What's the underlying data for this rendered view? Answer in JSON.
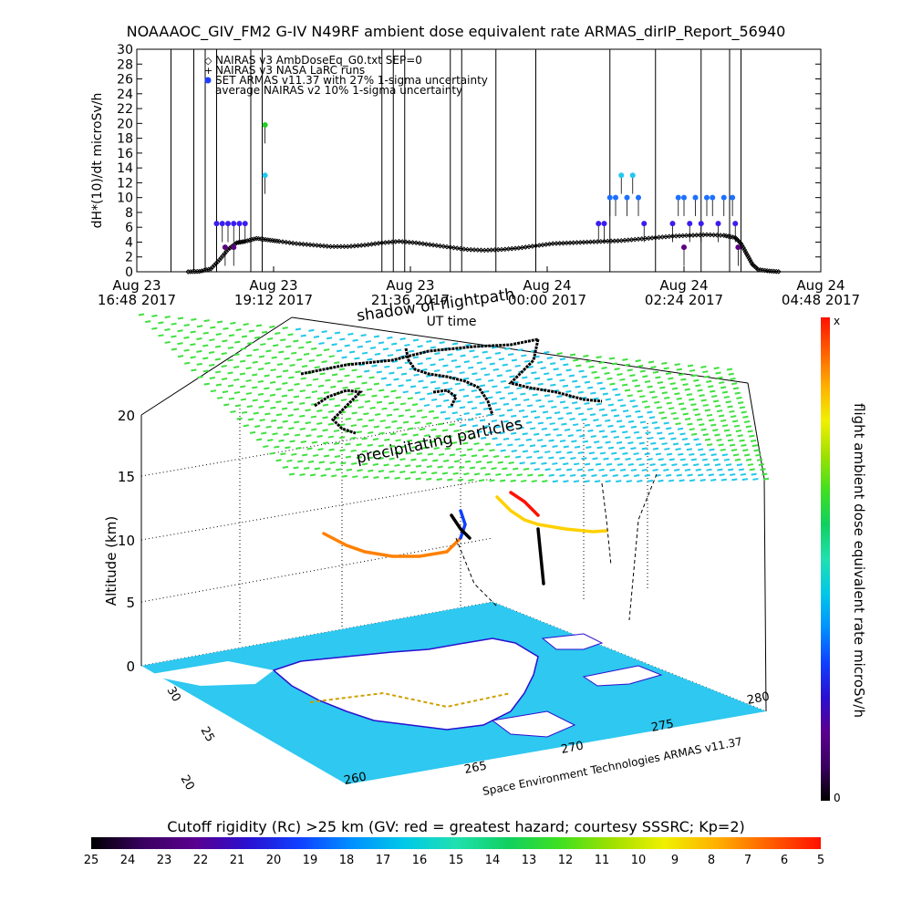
{
  "chart_data": [
    {
      "type": "scatter",
      "title": "NOAAAOC_GIV_FM2 G-IV    N49RF   ambient dose equivalent rate ARMAS_dirIP_Report_56940",
      "xlabel": "UT time",
      "ylabel": "dH*(10)/dt microSv/h",
      "ylim": [
        0,
        30
      ],
      "yticks": [
        "0",
        "2",
        "4",
        "6",
        "8",
        "10",
        "12",
        "14",
        "16",
        "18",
        "20",
        "22",
        "24",
        "26",
        "28",
        "30"
      ],
      "xticks": [
        {
          "line1": "Aug 23",
          "line2": "16:48 2017"
        },
        {
          "line1": "Aug 23",
          "line2": "19:12 2017"
        },
        {
          "line1": "Aug 23",
          "line2": "21:36 2017"
        },
        {
          "line1": "Aug 24",
          "line2": "00:00 2017"
        },
        {
          "line1": "Aug 24",
          "line2": "02:24 2017"
        },
        {
          "line1": "Aug 24",
          "line2": "04:48 2017"
        }
      ],
      "x_units": "hours since Aug 23 16:48 2017 UT",
      "xlim": [
        0,
        12
      ],
      "legend": {
        "placement": "top-left",
        "entries": [
          {
            "symbol": "◇",
            "label": "NAIRAS v3 AmbDoseEq_G0.txt SEP=0"
          },
          {
            "symbol": "+",
            "label": "NAIRAS v3 NASA LaRC runs"
          },
          {
            "symbol": "●",
            "label": "SET ARMAS v11.37 with 27% 1-sigma uncertainty",
            "color": "#1e3cff"
          },
          {
            "symbol": "",
            "label": "average NAIRAS v2 10% 1-sigma uncertainty"
          }
        ]
      },
      "vertical_lines_hours": [
        0.6,
        1.0,
        1.2,
        1.4,
        2.0,
        2.2,
        4.3,
        4.5,
        4.7,
        5.5,
        5.7,
        6.3,
        7.0,
        8.3,
        9.1,
        9.9,
        10.4,
        10.6
      ],
      "nairas_series": [
        [
          0.9,
          0
        ],
        [
          1.1,
          0.05
        ],
        [
          1.3,
          0.4
        ],
        [
          1.45,
          1.6
        ],
        [
          1.6,
          3.0
        ],
        [
          1.75,
          3.9
        ],
        [
          1.9,
          4.1
        ],
        [
          2.1,
          4.5
        ],
        [
          2.3,
          4.3
        ],
        [
          2.5,
          4.1
        ],
        [
          2.8,
          3.8
        ],
        [
          3.1,
          3.6
        ],
        [
          3.4,
          3.4
        ],
        [
          3.7,
          3.4
        ],
        [
          4.0,
          3.6
        ],
        [
          4.3,
          3.9
        ],
        [
          4.6,
          4.1
        ],
        [
          4.9,
          3.9
        ],
        [
          5.2,
          3.6
        ],
        [
          5.5,
          3.3
        ],
        [
          5.8,
          3.0
        ],
        [
          6.1,
          2.9
        ],
        [
          6.4,
          3.0
        ],
        [
          6.7,
          3.2
        ],
        [
          7.0,
          3.5
        ],
        [
          7.3,
          3.8
        ],
        [
          7.6,
          3.9
        ],
        [
          7.9,
          4.0
        ],
        [
          8.2,
          4.1
        ],
        [
          8.5,
          4.2
        ],
        [
          8.8,
          4.4
        ],
        [
          9.1,
          4.6
        ],
        [
          9.4,
          4.8
        ],
        [
          9.7,
          4.9
        ],
        [
          10.0,
          5.0
        ],
        [
          10.3,
          4.9
        ],
        [
          10.5,
          4.6
        ],
        [
          10.6,
          3.8
        ],
        [
          10.7,
          2.4
        ],
        [
          10.8,
          1.0
        ],
        [
          10.9,
          0.3
        ],
        [
          11.1,
          0.1
        ],
        [
          11.3,
          0
        ]
      ],
      "armas_points": [
        {
          "x": 1.4,
          "y": 6.5,
          "c": "#3a1ef0"
        },
        {
          "x": 1.5,
          "y": 6.5,
          "c": "#3a1ef0"
        },
        {
          "x": 1.6,
          "y": 6.5,
          "c": "#3a1ef0"
        },
        {
          "x": 1.7,
          "y": 6.5,
          "c": "#3a1ef0"
        },
        {
          "x": 1.8,
          "y": 6.5,
          "c": "#3a1ef0"
        },
        {
          "x": 1.9,
          "y": 6.5,
          "c": "#3a1ef0"
        },
        {
          "x": 1.55,
          "y": 3.3,
          "c": "#5a0080"
        },
        {
          "x": 1.7,
          "y": 3.3,
          "c": "#5a0080"
        },
        {
          "x": 2.25,
          "y": 19.8,
          "c": "#22cc22"
        },
        {
          "x": 2.25,
          "y": 13.0,
          "c": "#22c8f0"
        },
        {
          "x": 8.1,
          "y": 6.5,
          "c": "#3a1ef0"
        },
        {
          "x": 8.2,
          "y": 6.5,
          "c": "#3a1ef0"
        },
        {
          "x": 8.3,
          "y": 10.0,
          "c": "#1e70ff"
        },
        {
          "x": 8.4,
          "y": 10.0,
          "c": "#1e70ff"
        },
        {
          "x": 8.5,
          "y": 13.0,
          "c": "#22c8f0"
        },
        {
          "x": 8.6,
          "y": 10.0,
          "c": "#1e70ff"
        },
        {
          "x": 8.7,
          "y": 13.0,
          "c": "#22c8f0"
        },
        {
          "x": 8.8,
          "y": 10.0,
          "c": "#1e70ff"
        },
        {
          "x": 8.9,
          "y": 6.5,
          "c": "#3a1ef0"
        },
        {
          "x": 9.4,
          "y": 6.5,
          "c": "#3a1ef0"
        },
        {
          "x": 9.5,
          "y": 10.0,
          "c": "#1e70ff"
        },
        {
          "x": 9.6,
          "y": 10.0,
          "c": "#1e70ff"
        },
        {
          "x": 9.7,
          "y": 6.5,
          "c": "#3a1ef0"
        },
        {
          "x": 9.8,
          "y": 10.0,
          "c": "#1e70ff"
        },
        {
          "x": 9.9,
          "y": 6.5,
          "c": "#3a1ef0"
        },
        {
          "x": 10.0,
          "y": 10.0,
          "c": "#1e70ff"
        },
        {
          "x": 10.1,
          "y": 10.0,
          "c": "#1e70ff"
        },
        {
          "x": 10.2,
          "y": 6.5,
          "c": "#3a1ef0"
        },
        {
          "x": 10.3,
          "y": 10.0,
          "c": "#1e70ff"
        },
        {
          "x": 10.45,
          "y": 10.0,
          "c": "#1e70ff"
        },
        {
          "x": 10.5,
          "y": 6.5,
          "c": "#3a1ef0"
        },
        {
          "x": 9.6,
          "y": 3.3,
          "c": "#5a0080"
        },
        {
          "x": 10.55,
          "y": 3.3,
          "c": "#5a0080"
        }
      ]
    },
    {
      "type": "3d-map",
      "labels": {
        "shadow": "shadow of flightpath",
        "precip": "precipitating particles",
        "credit": "Space Environment Technologies ARMAS v11.37",
        "ylabel": "Altitude (km)"
      },
      "altitude_ticks": [
        "0",
        "5",
        "10",
        "15",
        "20"
      ],
      "lat_ticks": [
        "20",
        "25",
        "30"
      ],
      "lon_ticks": [
        "280",
        "275",
        "270",
        "265",
        "260"
      ],
      "right_colorbar": {
        "label": "flight ambient dose equivalent rate microSv/h",
        "top_label": "x",
        "bottom_label": "0"
      },
      "bottom_colorbar": {
        "title": "Cutoff rigidity (Rc) >25 km (GV: red = greatest hazard; courtesy SSSRC; Kp=2)",
        "ticks": [
          "25",
          "24",
          "23",
          "22",
          "21",
          "20",
          "19",
          "18",
          "17",
          "16",
          "15",
          "14",
          "13",
          "12",
          "11",
          "10",
          "9",
          "8",
          "7",
          "6",
          "5"
        ]
      }
    }
  ],
  "colors": {
    "rainbow": [
      "#000000",
      "#3a0060",
      "#5a0090",
      "#2a10d0",
      "#1040ff",
      "#0090ff",
      "#00c8e8",
      "#20e0b0",
      "#10d060",
      "#40e020",
      "#a0e000",
      "#f0f000",
      "#ffb000",
      "#ff6000",
      "#ff1000"
    ],
    "sea": "#2ec8f0",
    "land": "#ffffff",
    "grid_cyan": "#22c8e8",
    "grid_green": "#40e040"
  }
}
